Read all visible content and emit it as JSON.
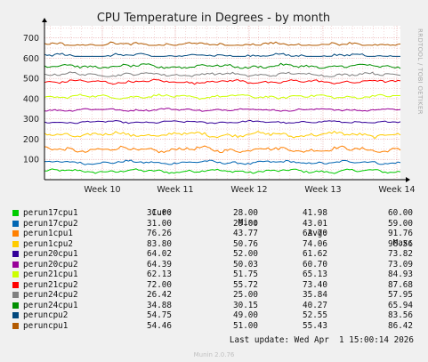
{
  "chart_data": {
    "type": "line",
    "title": "CPU Temperature in Degrees - by month",
    "side_label": "RRDTOOL / TOBI OETIKER",
    "x_ticks": [
      "Week 10",
      "Week 11",
      "Week 12",
      "Week 13",
      "Week 14"
    ],
    "y_ticks": [
      100,
      200,
      300,
      400,
      500,
      600,
      700
    ],
    "ylim": [
      0,
      760
    ],
    "grid": true,
    "legend_headers": {
      "cur": "Cur:",
      "min": "Min:",
      "avg": "Avg:",
      "max": "Max:"
    },
    "series": [
      {
        "name": "perun17cpu1",
        "color": "#00cc00",
        "cur": "31.00",
        "min": "28.00",
        "avg": "41.98",
        "max": "60.00"
      },
      {
        "name": "perun17cpu2",
        "color": "#0066b3",
        "cur": "31.00",
        "min": "29.00",
        "avg": "43.01",
        "max": "59.00"
      },
      {
        "name": "perun1cpu1",
        "color": "#ff8000",
        "cur": "76.26",
        "min": "43.77",
        "avg": "63.70",
        "max": "91.76"
      },
      {
        "name": "perun1cpu2",
        "color": "#ffcc00",
        "cur": "83.80",
        "min": "50.76",
        "avg": "74.06",
        "max": "96.56"
      },
      {
        "name": "perun20cpu1",
        "color": "#330099",
        "cur": "64.02",
        "min": "52.00",
        "avg": "61.62",
        "max": "73.82"
      },
      {
        "name": "perun20cpu2",
        "color": "#990099",
        "cur": "64.39",
        "min": "50.03",
        "avg": "60.70",
        "max": "73.09"
      },
      {
        "name": "perun21cpu1",
        "color": "#ccff00",
        "cur": "62.13",
        "min": "51.75",
        "avg": "65.13",
        "max": "84.93"
      },
      {
        "name": "perun21cpu2",
        "color": "#ff0000",
        "cur": "72.00",
        "min": "55.72",
        "avg": "73.40",
        "max": "87.68"
      },
      {
        "name": "perun24cpu2",
        "color": "#808080",
        "cur": "26.42",
        "min": "25.00",
        "avg": "35.84",
        "max": "57.95"
      },
      {
        "name": "perun24cpu1",
        "color": "#008f00",
        "cur": "34.88",
        "min": "30.15",
        "avg": "40.27",
        "max": "65.94"
      },
      {
        "name": "peruncpu2",
        "color": "#00487d",
        "cur": "54.75",
        "min": "49.00",
        "avg": "52.55",
        "max": "83.56"
      },
      {
        "name": "peruncpu1",
        "color": "#b35a00",
        "cur": "54.46",
        "min": "51.00",
        "avg": "55.43",
        "max": "86.42"
      }
    ]
  },
  "last_update": "Last update: Wed Apr  1 15:00:14 2026",
  "footer": "Munin 2.0.76"
}
